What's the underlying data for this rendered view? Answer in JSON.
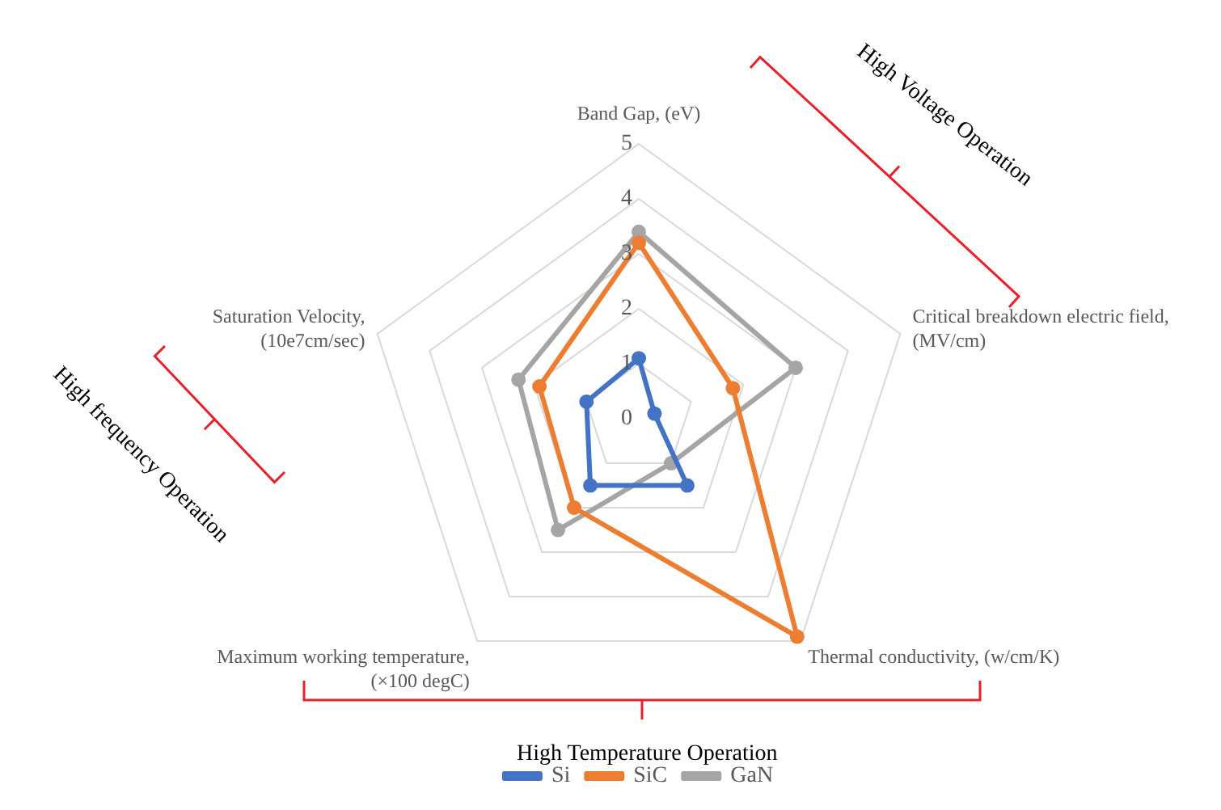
{
  "chart_data": {
    "type": "radar",
    "categories": [
      "Band Gap, (eV)",
      "Critical breakdown electric field, (MV/cm)",
      "Thermal conductivity, (w/cm/K)",
      "Maximum working temperature, (×100 degC)",
      "Saturation Velocity, (10e7cm/sec)"
    ],
    "series": [
      {
        "name": "Si",
        "color": "#4472c4",
        "values": [
          1.1,
          0.3,
          1.5,
          1.5,
          1.0
        ]
      },
      {
        "name": "SiC",
        "color": "#ed7d31",
        "values": [
          3.2,
          1.8,
          4.9,
          2.0,
          1.9
        ]
      },
      {
        "name": "GaN",
        "color": "#a5a5a5",
        "values": [
          3.4,
          3.0,
          1.0,
          2.5,
          2.3
        ]
      }
    ],
    "ylim": [
      0,
      5
    ],
    "yticks": [
      0,
      1,
      2,
      3,
      4,
      5
    ],
    "grid": true,
    "legend": "bottom",
    "marker": "circle",
    "annotations": [
      "High Voltage Operation",
      "High frequency Operation",
      "High Temperature Operation"
    ]
  }
}
